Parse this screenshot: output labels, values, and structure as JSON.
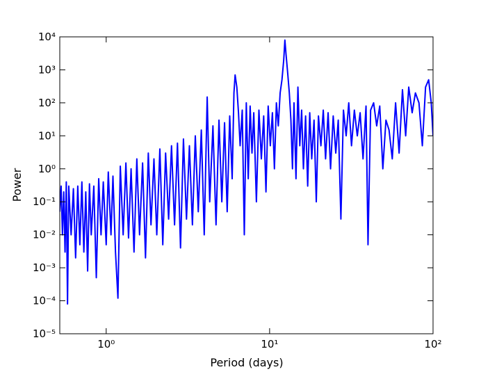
{
  "chart_data": {
    "type": "line",
    "x_label": "Period (days)",
    "y_label": "Power",
    "xscale": "log",
    "yscale": "log",
    "color": "#0000ff",
    "xlim": [
      0.52,
      100
    ],
    "ylim": [
      1e-05,
      10000
    ],
    "xticks": [
      {
        "value": 1,
        "label": "10⁰"
      },
      {
        "value": 10,
        "label": "10¹"
      },
      {
        "value": 100,
        "label": "10²"
      }
    ],
    "yticks": [
      {
        "value": 1e-05,
        "label": "10⁻⁵"
      },
      {
        "value": 0.0001,
        "label": "10⁻⁴"
      },
      {
        "value": 0.001,
        "label": "10⁻³"
      },
      {
        "value": 0.01,
        "label": "10⁻²"
      },
      {
        "value": 0.1,
        "label": "10⁻¹"
      },
      {
        "value": 1,
        "label": "10⁰"
      },
      {
        "value": 10,
        "label": "10¹"
      },
      {
        "value": 100,
        "label": "10²"
      },
      {
        "value": 1000,
        "label": "10³"
      },
      {
        "value": 10000,
        "label": "10⁴"
      }
    ],
    "x": [
      0.52,
      0.53,
      0.54,
      0.55,
      0.56,
      0.57,
      0.58,
      0.59,
      0.61,
      0.63,
      0.65,
      0.67,
      0.69,
      0.71,
      0.73,
      0.75,
      0.77,
      0.79,
      0.81,
      0.84,
      0.87,
      0.9,
      0.93,
      0.96,
      1.0,
      1.03,
      1.07,
      1.1,
      1.14,
      1.18,
      1.22,
      1.27,
      1.32,
      1.37,
      1.42,
      1.48,
      1.54,
      1.6,
      1.67,
      1.74,
      1.81,
      1.88,
      1.96,
      2.04,
      2.13,
      2.22,
      2.31,
      2.41,
      2.51,
      2.62,
      2.73,
      2.85,
      2.97,
      3.1,
      3.23,
      3.37,
      3.51,
      3.66,
      3.82,
      3.98,
      4.15,
      4.3,
      4.5,
      4.7,
      4.9,
      5.1,
      5.3,
      5.5,
      5.7,
      5.9,
      6.05,
      6.15,
      6.3,
      6.45,
      6.6,
      6.8,
      7.0,
      7.2,
      7.4,
      7.6,
      7.8,
      8.0,
      8.3,
      8.6,
      8.9,
      9.2,
      9.5,
      9.8,
      10.1,
      10.4,
      10.7,
      11.0,
      11.3,
      11.6,
      11.9,
      12.2,
      12.4,
      12.6,
      12.9,
      13.2,
      13.5,
      13.8,
      14.1,
      14.5,
      14.9,
      15.3,
      15.7,
      16.1,
      16.6,
      17.1,
      17.6,
      18.1,
      18.7,
      19.3,
      19.9,
      20.6,
      21.3,
      22.0,
      22.8,
      23.6,
      24.5,
      25.4,
      26.3,
      27.3,
      28.3,
      29.4,
      30.5,
      31.7,
      33,
      34.4,
      35.8,
      37.3,
      38.9,
      40,
      41.5,
      43.3,
      45.2,
      47.2,
      49.3,
      51.5,
      53.8,
      56.3,
      59,
      62,
      65,
      68,
      71,
      74.5,
      78,
      82,
      86,
      90,
      94,
      97.5,
      100
    ],
    "values": [
      0.05,
      0.3,
      0.01,
      0.2,
      0.003,
      0.4,
      8e-05,
      0.3,
      0.01,
      0.25,
      0.002,
      0.3,
      0.005,
      0.4,
      0.003,
      0.2,
      0.0008,
      0.35,
      0.01,
      0.3,
      0.0005,
      0.5,
      0.01,
      0.4,
      0.005,
      0.8,
      0.01,
      0.6,
      0.003,
      0.00012,
      1.2,
      0.01,
      1.5,
      0.008,
      1.0,
      0.003,
      2,
      0.01,
      1.5,
      0.002,
      3,
      0.02,
      2,
      0.01,
      4,
      0.005,
      3,
      0.03,
      5,
      0.02,
      6,
      0.004,
      8,
      0.03,
      5,
      0.02,
      10,
      0.05,
      15,
      0.01,
      150,
      0.1,
      20,
      0.02,
      30,
      0.1,
      25,
      0.05,
      40,
      0.5,
      200,
      700,
      300,
      50,
      5,
      60,
      0.01,
      100,
      0.5,
      80,
      3,
      50,
      0.1,
      60,
      2,
      40,
      0.2,
      80,
      5,
      50,
      1,
      100,
      20,
      200,
      500,
      2000,
      8000,
      3000,
      800,
      200,
      30,
      1,
      100,
      0.5,
      300,
      5,
      60,
      1,
      40,
      0.3,
      50,
      2,
      30,
      0.1,
      40,
      5,
      60,
      2,
      50,
      1,
      40,
      3,
      30,
      0.03,
      60,
      10,
      100,
      5,
      60,
      10,
      50,
      2,
      80,
      0.005,
      60,
      100,
      20,
      80,
      1,
      30,
      15,
      2,
      100,
      3,
      250,
      10,
      300,
      50,
      200,
      100,
      5,
      300,
      500,
      100,
      10
    ]
  }
}
